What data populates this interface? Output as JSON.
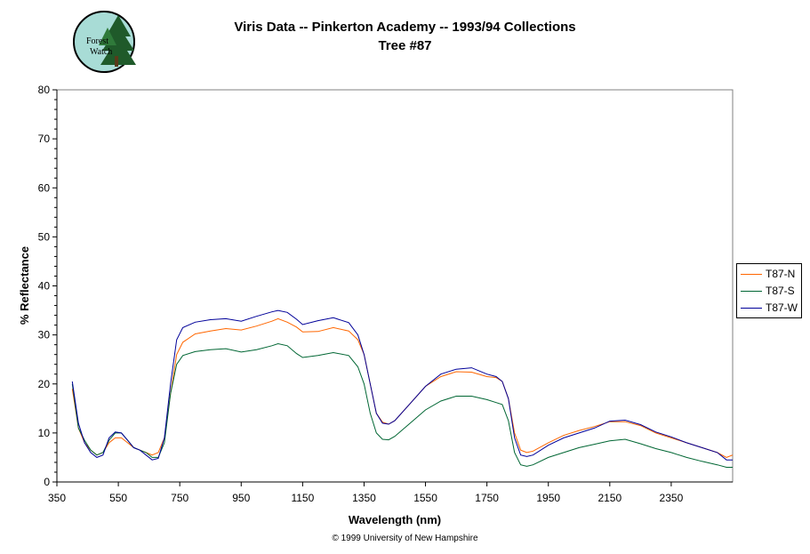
{
  "logo": {
    "line1": "Forest",
    "line2": "Watch"
  },
  "chart_data": {
    "type": "line",
    "title": "Viris Data -- Pinkerton Academy -- 1993/94 Collections",
    "subtitle": "Tree #87",
    "xlabel": "Wavelength (nm)",
    "ylabel": "% Reflectance",
    "xlim": [
      350,
      2550
    ],
    "ylim": [
      0,
      80
    ],
    "x_ticks": [
      350,
      550,
      750,
      950,
      1150,
      1350,
      1550,
      1750,
      1950,
      2150,
      2350
    ],
    "y_ticks": [
      0,
      10,
      20,
      30,
      40,
      50,
      60,
      70,
      80
    ],
    "grid": false,
    "legend_position": "right",
    "series": [
      {
        "name": "T87-N",
        "color": "#ff6600",
        "x": [
          400,
          420,
          440,
          460,
          480,
          500,
          520,
          540,
          560,
          580,
          600,
          620,
          640,
          660,
          680,
          700,
          720,
          740,
          760,
          800,
          850,
          900,
          950,
          1000,
          1050,
          1070,
          1100,
          1130,
          1150,
          1200,
          1250,
          1300,
          1330,
          1350,
          1370,
          1390,
          1410,
          1430,
          1450,
          1500,
          1550,
          1600,
          1650,
          1700,
          1750,
          1780,
          1800,
          1820,
          1840,
          1860,
          1880,
          1900,
          1950,
          2000,
          2050,
          2100,
          2150,
          2200,
          2250,
          2300,
          2350,
          2400,
          2450,
          2500,
          2530,
          2550
        ],
        "y": [
          19,
          11,
          8,
          6.5,
          5.5,
          6,
          8,
          9,
          9,
          8,
          7,
          6.5,
          6,
          5.5,
          6,
          9,
          18,
          26,
          28.5,
          30.2,
          30.8,
          31.3,
          31,
          31.8,
          32.8,
          33.3,
          32.6,
          31.6,
          30.6,
          30.7,
          31.5,
          30.8,
          29,
          26,
          20,
          14,
          12.2,
          11.8,
          12.5,
          16,
          19.5,
          21.5,
          22.5,
          22.4,
          21.5,
          21.3,
          20.5,
          17,
          10,
          6.5,
          6,
          6.3,
          8,
          9.5,
          10.5,
          11.3,
          12.3,
          12.3,
          11.5,
          10,
          9,
          8,
          7,
          6,
          5,
          5.5
        ]
      },
      {
        "name": "T87-S",
        "color": "#006633",
        "x": [
          400,
          420,
          440,
          460,
          480,
          500,
          520,
          540,
          560,
          580,
          600,
          620,
          640,
          660,
          680,
          700,
          720,
          740,
          760,
          800,
          850,
          900,
          950,
          1000,
          1050,
          1070,
          1100,
          1130,
          1150,
          1200,
          1250,
          1300,
          1330,
          1350,
          1370,
          1390,
          1410,
          1430,
          1450,
          1500,
          1550,
          1600,
          1650,
          1700,
          1750,
          1780,
          1800,
          1820,
          1840,
          1860,
          1880,
          1900,
          1950,
          2000,
          2050,
          2100,
          2150,
          2200,
          2250,
          2300,
          2350,
          2400,
          2450,
          2500,
          2530,
          2550
        ],
        "y": [
          20,
          11,
          8.5,
          6.5,
          5.5,
          6,
          8.5,
          10,
          10,
          8.5,
          7,
          6.5,
          6,
          5,
          5,
          8,
          18,
          24,
          25.8,
          26.6,
          27,
          27.2,
          26.5,
          27,
          27.8,
          28.2,
          27.8,
          26.2,
          25.4,
          25.8,
          26.4,
          25.8,
          23.5,
          20,
          14,
          10,
          8.7,
          8.6,
          9.3,
          12,
          14.7,
          16.5,
          17.5,
          17.5,
          16.8,
          16.2,
          15.8,
          12.5,
          6,
          3.5,
          3.2,
          3.5,
          5,
          6,
          7,
          7.7,
          8.4,
          8.7,
          7.8,
          6.8,
          6,
          5,
          4.2,
          3.5,
          3,
          3
        ]
      },
      {
        "name": "T87-W",
        "color": "#000099",
        "x": [
          400,
          420,
          440,
          460,
          480,
          500,
          520,
          540,
          560,
          580,
          600,
          620,
          640,
          660,
          680,
          700,
          720,
          740,
          760,
          800,
          850,
          900,
          950,
          1000,
          1050,
          1070,
          1100,
          1130,
          1150,
          1200,
          1250,
          1300,
          1330,
          1350,
          1370,
          1390,
          1410,
          1430,
          1450,
          1500,
          1550,
          1600,
          1650,
          1700,
          1750,
          1780,
          1800,
          1820,
          1840,
          1860,
          1880,
          1900,
          1950,
          2000,
          2050,
          2100,
          2150,
          2200,
          2250,
          2300,
          2350,
          2400,
          2450,
          2500,
          2530,
          2550
        ],
        "y": [
          20.5,
          12,
          8,
          6,
          5,
          5.5,
          9,
          10.2,
          10,
          8.5,
          7,
          6.5,
          5.5,
          4.5,
          4.8,
          9,
          20,
          29,
          31.5,
          32.6,
          33.1,
          33.3,
          32.8,
          33.8,
          34.7,
          35,
          34.6,
          33.2,
          32.1,
          32.9,
          33.5,
          32.5,
          30,
          26,
          20,
          14,
          12,
          11.8,
          12.5,
          16,
          19.5,
          22,
          23,
          23.3,
          22,
          21.5,
          20.5,
          17,
          9,
          5.5,
          5.2,
          5.5,
          7.5,
          9,
          10,
          11,
          12.4,
          12.6,
          11.7,
          10.2,
          9.2,
          8,
          7,
          6,
          4.5,
          4.5
        ]
      }
    ]
  },
  "copyright": "© 1999 University of New Hampshire"
}
